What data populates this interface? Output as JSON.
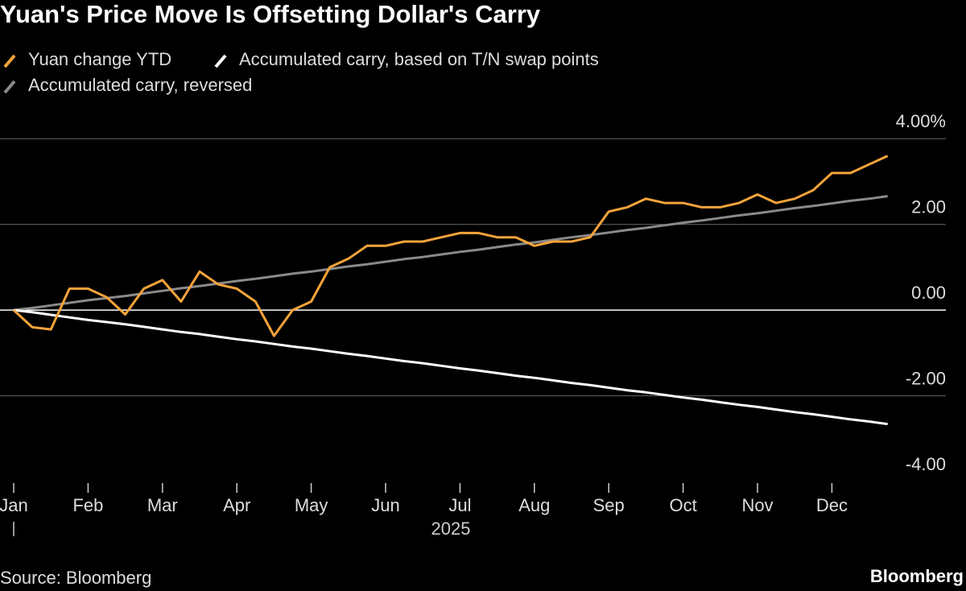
{
  "chart_data": {
    "type": "line",
    "title": "Yuan's Price Move Is Offsetting Dollar's Carry",
    "source": "Source: Bloomberg",
    "brand": "Bloomberg",
    "x_label": "2025",
    "categories": [
      "Jan",
      null,
      null,
      null,
      "Feb",
      null,
      null,
      null,
      "Mar",
      null,
      null,
      null,
      "Apr",
      null,
      null,
      null,
      "May",
      null,
      null,
      null,
      "Jun",
      null,
      null,
      null,
      "Jul",
      null,
      null,
      null,
      "Aug",
      null,
      null,
      null,
      "Sep",
      null,
      null,
      null,
      "Oct",
      null,
      null,
      null,
      "Nov",
      null,
      null,
      null,
      "Dec",
      null,
      null,
      null
    ],
    "series": [
      {
        "name": "Yuan change YTD",
        "color": "#f5a33a",
        "values": [
          0,
          -0.4,
          -0.45,
          0.5,
          0.5,
          0.3,
          -0.1,
          0.5,
          0.7,
          0.2,
          0.9,
          0.6,
          0.5,
          0.2,
          -0.6,
          0.0,
          0.2,
          1.0,
          1.2,
          1.5,
          1.5,
          1.6,
          1.6,
          1.7,
          1.8,
          1.8,
          1.7,
          1.7,
          1.5,
          1.6,
          1.6,
          1.7,
          2.3,
          2.4,
          2.6,
          2.5,
          2.5,
          2.4,
          2.4,
          2.5,
          2.7,
          2.5,
          2.6,
          2.8,
          3.2,
          3.2,
          3.4,
          3.6
        ]
      },
      {
        "name": "Accumulated carry, based on T/N swap points",
        "color": "#ffffff",
        "values": [
          0,
          -0.05,
          -0.11,
          -0.17,
          -0.23,
          -0.28,
          -0.33,
          -0.39,
          -0.45,
          -0.51,
          -0.56,
          -0.62,
          -0.68,
          -0.73,
          -0.79,
          -0.85,
          -0.9,
          -0.96,
          -1.02,
          -1.07,
          -1.13,
          -1.19,
          -1.24,
          -1.3,
          -1.36,
          -1.41,
          -1.47,
          -1.53,
          -1.58,
          -1.64,
          -1.7,
          -1.75,
          -1.81,
          -1.87,
          -1.92,
          -1.98,
          -2.04,
          -2.09,
          -2.15,
          -2.21,
          -2.26,
          -2.32,
          -2.38,
          -2.43,
          -2.49,
          -2.55,
          -2.6,
          -2.66
        ]
      },
      {
        "name": "Accumulated carry, reversed",
        "color": "#8a8a8a",
        "values": [
          0,
          0.05,
          0.11,
          0.17,
          0.23,
          0.28,
          0.33,
          0.39,
          0.45,
          0.51,
          0.56,
          0.62,
          0.68,
          0.73,
          0.79,
          0.85,
          0.9,
          0.96,
          1.02,
          1.07,
          1.13,
          1.19,
          1.24,
          1.3,
          1.36,
          1.41,
          1.47,
          1.53,
          1.58,
          1.64,
          1.7,
          1.75,
          1.81,
          1.87,
          1.92,
          1.98,
          2.04,
          2.09,
          2.15,
          2.21,
          2.26,
          2.32,
          2.38,
          2.43,
          2.49,
          2.55,
          2.6,
          2.66
        ]
      }
    ],
    "ylim": [
      -4,
      4.4
    ],
    "yticks": [
      {
        "value": 4,
        "label": "4.00%"
      },
      {
        "value": 2,
        "label": "2.00"
      },
      {
        "value": 0,
        "label": "0.00"
      },
      {
        "value": -2,
        "label": "-2.00"
      },
      {
        "value": -4,
        "label": "-4.00"
      }
    ],
    "grid": true
  }
}
